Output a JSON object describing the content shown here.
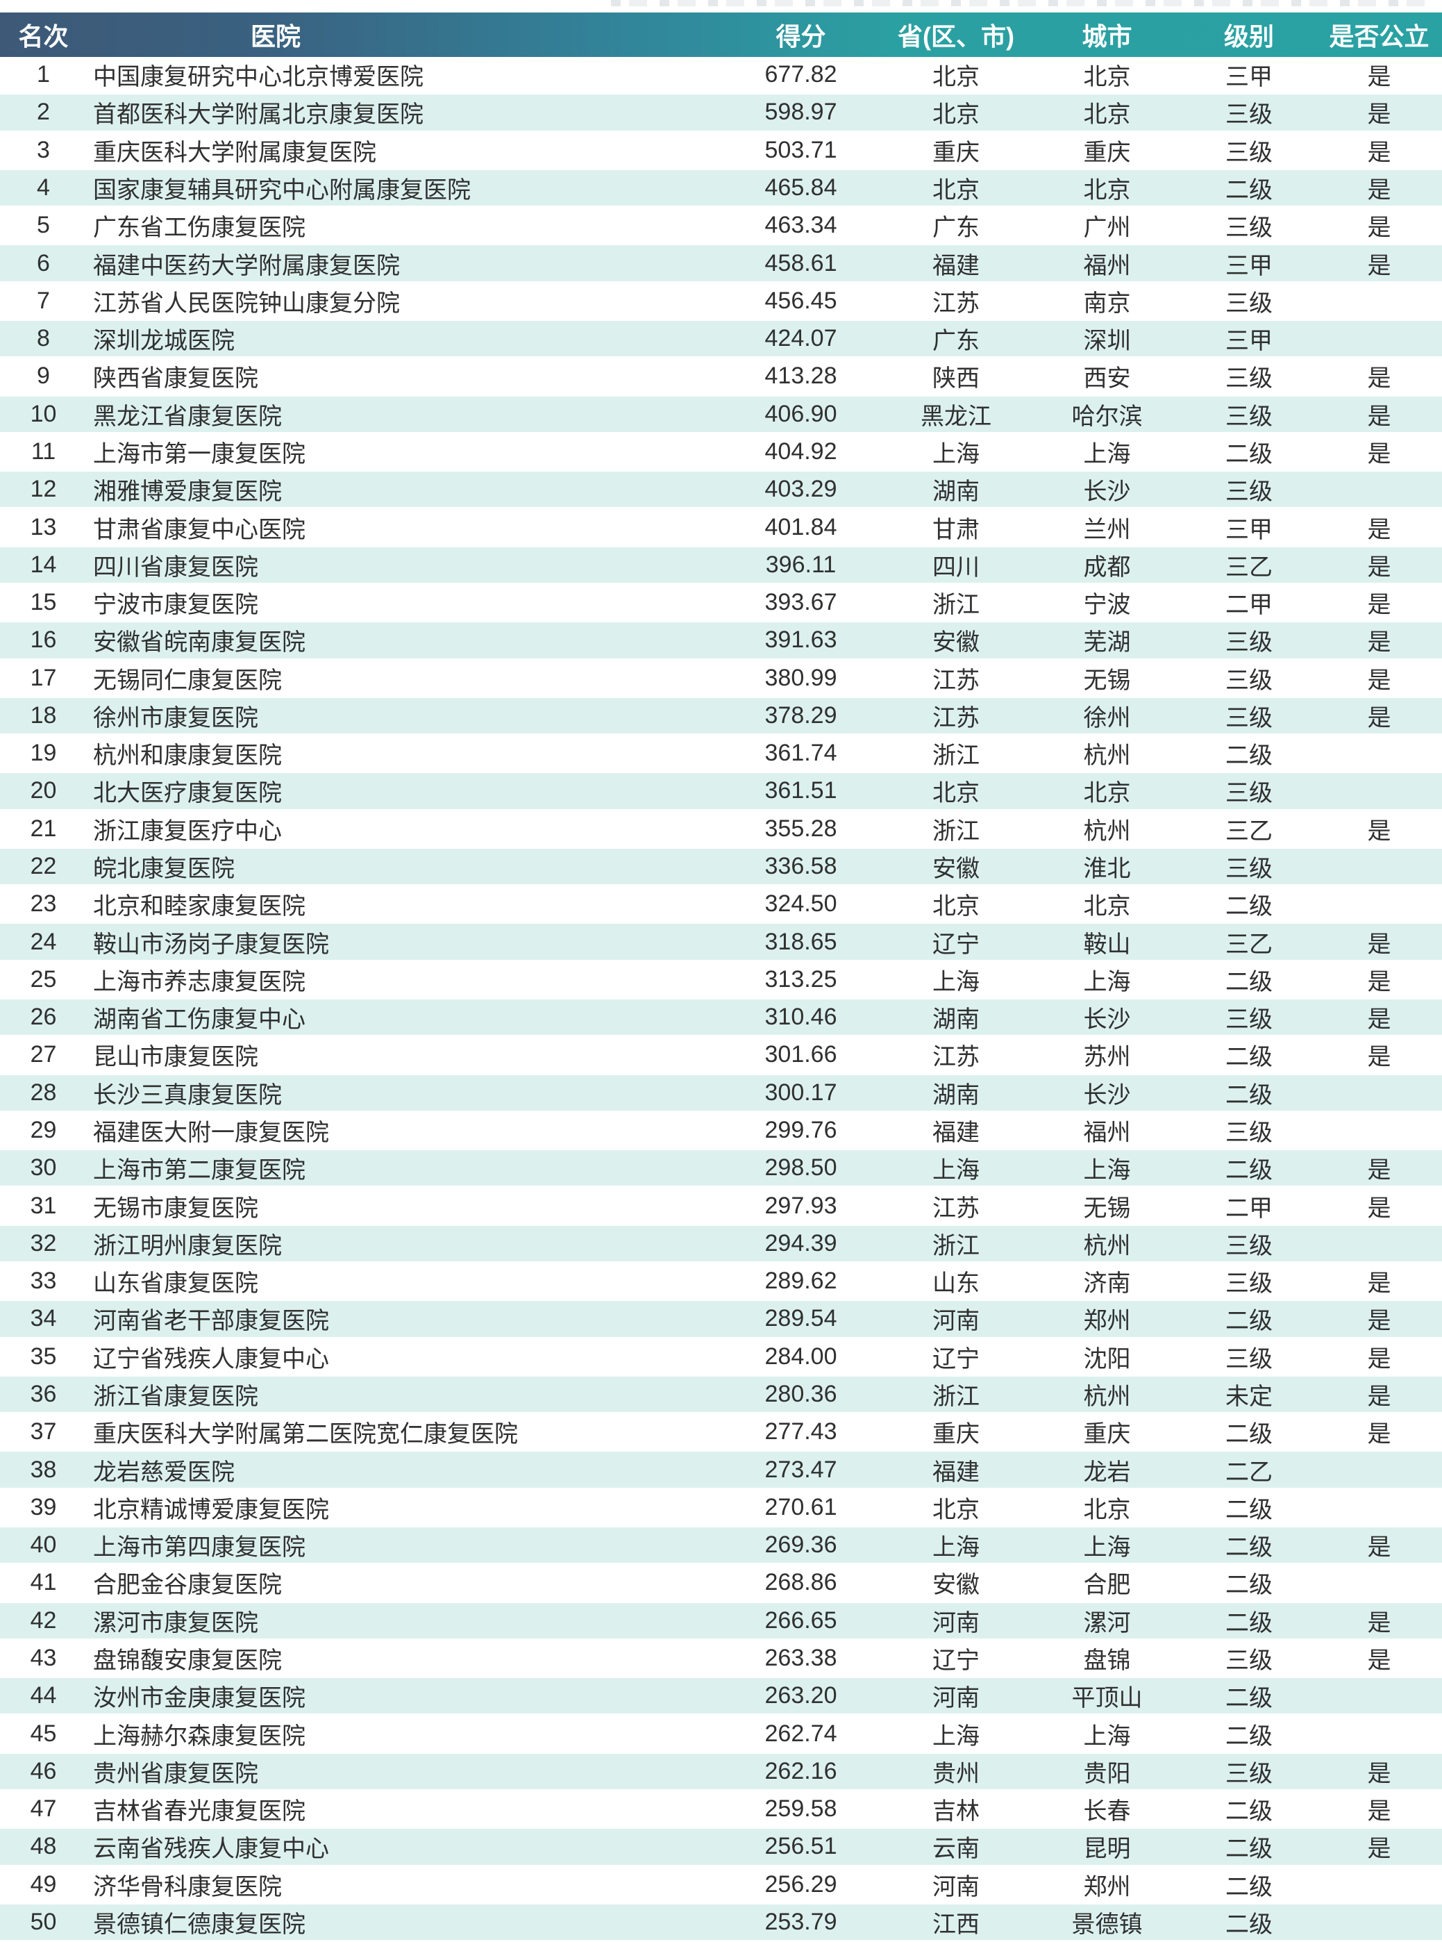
{
  "table": {
    "columns": [
      {
        "key": "rank",
        "label": "名次"
      },
      {
        "key": "hospital",
        "label": "医院"
      },
      {
        "key": "score",
        "label": "得分"
      },
      {
        "key": "province",
        "label": "省(区、市)"
      },
      {
        "key": "city",
        "label": "城市"
      },
      {
        "key": "level",
        "label": "级别"
      },
      {
        "key": "public",
        "label": "是否公立"
      }
    ],
    "rows": [
      [
        "1",
        "中国康复研究中心北京博爱医院",
        "677.82",
        "北京",
        "北京",
        "三甲",
        "是"
      ],
      [
        "2",
        "首都医科大学附属北京康复医院",
        "598.97",
        "北京",
        "北京",
        "三级",
        "是"
      ],
      [
        "3",
        "重庆医科大学附属康复医院",
        "503.71",
        "重庆",
        "重庆",
        "三级",
        "是"
      ],
      [
        "4",
        "国家康复辅具研究中心附属康复医院",
        "465.84",
        "北京",
        "北京",
        "二级",
        "是"
      ],
      [
        "5",
        "广东省工伤康复医院",
        "463.34",
        "广东",
        "广州",
        "三级",
        "是"
      ],
      [
        "6",
        "福建中医药大学附属康复医院",
        "458.61",
        "福建",
        "福州",
        "三甲",
        "是"
      ],
      [
        "7",
        "江苏省人民医院钟山康复分院",
        "456.45",
        "江苏",
        "南京",
        "三级",
        ""
      ],
      [
        "8",
        "深圳龙城医院",
        "424.07",
        "广东",
        "深圳",
        "三甲",
        ""
      ],
      [
        "9",
        "陕西省康复医院",
        "413.28",
        "陕西",
        "西安",
        "三级",
        "是"
      ],
      [
        "10",
        "黑龙江省康复医院",
        "406.90",
        "黑龙江",
        "哈尔滨",
        "三级",
        "是"
      ],
      [
        "11",
        "上海市第一康复医院",
        "404.92",
        "上海",
        "上海",
        "二级",
        "是"
      ],
      [
        "12",
        "湘雅博爱康复医院",
        "403.29",
        "湖南",
        "长沙",
        "三级",
        ""
      ],
      [
        "13",
        "甘肃省康复中心医院",
        "401.84",
        "甘肃",
        "兰州",
        "三甲",
        "是"
      ],
      [
        "14",
        "四川省康复医院",
        "396.11",
        "四川",
        "成都",
        "三乙",
        "是"
      ],
      [
        "15",
        "宁波市康复医院",
        "393.67",
        "浙江",
        "宁波",
        "二甲",
        "是"
      ],
      [
        "16",
        "安徽省皖南康复医院",
        "391.63",
        "安徽",
        "芜湖",
        "三级",
        "是"
      ],
      [
        "17",
        "无锡同仁康复医院",
        "380.99",
        "江苏",
        "无锡",
        "三级",
        "是"
      ],
      [
        "18",
        "徐州市康复医院",
        "378.29",
        "江苏",
        "徐州",
        "三级",
        "是"
      ],
      [
        "19",
        "杭州和康康复医院",
        "361.74",
        "浙江",
        "杭州",
        "二级",
        ""
      ],
      [
        "20",
        "北大医疗康复医院",
        "361.51",
        "北京",
        "北京",
        "三级",
        ""
      ],
      [
        "21",
        "浙江康复医疗中心",
        "355.28",
        "浙江",
        "杭州",
        "三乙",
        "是"
      ],
      [
        "22",
        "皖北康复医院",
        "336.58",
        "安徽",
        "淮北",
        "三级",
        ""
      ],
      [
        "23",
        "北京和睦家康复医院",
        "324.50",
        "北京",
        "北京",
        "二级",
        ""
      ],
      [
        "24",
        "鞍山市汤岗子康复医院",
        "318.65",
        "辽宁",
        "鞍山",
        "三乙",
        "是"
      ],
      [
        "25",
        "上海市养志康复医院",
        "313.25",
        "上海",
        "上海",
        "二级",
        "是"
      ],
      [
        "26",
        "湖南省工伤康复中心",
        "310.46",
        "湖南",
        "长沙",
        "三级",
        "是"
      ],
      [
        "27",
        "昆山市康复医院",
        "301.66",
        "江苏",
        "苏州",
        "二级",
        "是"
      ],
      [
        "28",
        "长沙三真康复医院",
        "300.17",
        "湖南",
        "长沙",
        "二级",
        ""
      ],
      [
        "29",
        "福建医大附一康复医院",
        "299.76",
        "福建",
        "福州",
        "三级",
        ""
      ],
      [
        "30",
        "上海市第二康复医院",
        "298.50",
        "上海",
        "上海",
        "二级",
        "是"
      ],
      [
        "31",
        "无锡市康复医院",
        "297.93",
        "江苏",
        "无锡",
        "二甲",
        "是"
      ],
      [
        "32",
        "浙江明州康复医院",
        "294.39",
        "浙江",
        "杭州",
        "三级",
        ""
      ],
      [
        "33",
        "山东省康复医院",
        "289.62",
        "山东",
        "济南",
        "三级",
        "是"
      ],
      [
        "34",
        "河南省老干部康复医院",
        "289.54",
        "河南",
        "郑州",
        "二级",
        "是"
      ],
      [
        "35",
        "辽宁省残疾人康复中心",
        "284.00",
        "辽宁",
        "沈阳",
        "三级",
        "是"
      ],
      [
        "36",
        "浙江省康复医院",
        "280.36",
        "浙江",
        "杭州",
        "未定",
        "是"
      ],
      [
        "37",
        "重庆医科大学附属第二医院宽仁康复医院",
        "277.43",
        "重庆",
        "重庆",
        "二级",
        "是"
      ],
      [
        "38",
        "龙岩慈爱医院",
        "273.47",
        "福建",
        "龙岩",
        "二乙",
        ""
      ],
      [
        "39",
        "北京精诚博爱康复医院",
        "270.61",
        "北京",
        "北京",
        "二级",
        ""
      ],
      [
        "40",
        "上海市第四康复医院",
        "269.36",
        "上海",
        "上海",
        "二级",
        "是"
      ],
      [
        "41",
        "合肥金谷康复医院",
        "268.86",
        "安徽",
        "合肥",
        "二级",
        ""
      ],
      [
        "42",
        "漯河市康复医院",
        "266.65",
        "河南",
        "漯河",
        "二级",
        "是"
      ],
      [
        "43",
        "盘锦馥安康复医院",
        "263.38",
        "辽宁",
        "盘锦",
        "三级",
        "是"
      ],
      [
        "44",
        "汝州市金庚康复医院",
        "263.20",
        "河南",
        "平顶山",
        "二级",
        ""
      ],
      [
        "45",
        "上海赫尔森康复医院",
        "262.74",
        "上海",
        "上海",
        "二级",
        ""
      ],
      [
        "46",
        "贵州省康复医院",
        "262.16",
        "贵州",
        "贵阳",
        "三级",
        "是"
      ],
      [
        "47",
        "吉林省春光康复医院",
        "259.58",
        "吉林",
        "长春",
        "二级",
        "是"
      ],
      [
        "48",
        "云南省残疾人康复中心",
        "256.51",
        "云南",
        "昆明",
        "二级",
        "是"
      ],
      [
        "49",
        "济华骨科康复医院",
        "256.29",
        "河南",
        "郑州",
        "二级",
        ""
      ],
      [
        "50",
        "景德镇仁德康复医院",
        "253.79",
        "江西",
        "景德镇",
        "二级",
        ""
      ]
    ]
  },
  "colors": {
    "header_gradient_left": "#3d5977",
    "header_gradient_right": "#2aa1a3",
    "alt_row_bg": "#dcf1ee",
    "header_text": "#ffffff",
    "body_text": "#303030"
  }
}
